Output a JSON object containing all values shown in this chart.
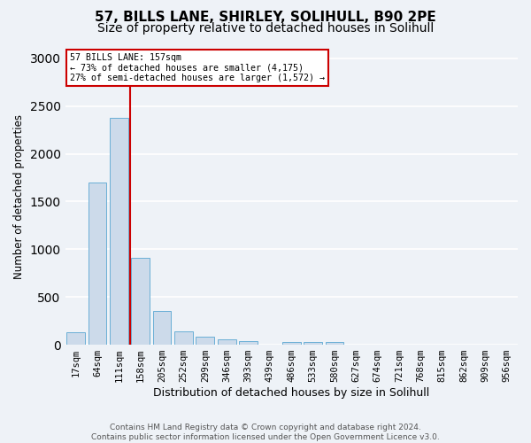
{
  "title_line1": "57, BILLS LANE, SHIRLEY, SOLIHULL, B90 2PE",
  "title_line2": "Size of property relative to detached houses in Solihull",
  "xlabel": "Distribution of detached houses by size in Solihull",
  "ylabel": "Number of detached properties",
  "footer_line1": "Contains HM Land Registry data © Crown copyright and database right 2024.",
  "footer_line2": "Contains public sector information licensed under the Open Government Licence v3.0.",
  "categories": [
    "17sqm",
    "64sqm",
    "111sqm",
    "158sqm",
    "205sqm",
    "252sqm",
    "299sqm",
    "346sqm",
    "393sqm",
    "439sqm",
    "486sqm",
    "533sqm",
    "580sqm",
    "627sqm",
    "674sqm",
    "721sqm",
    "768sqm",
    "815sqm",
    "862sqm",
    "909sqm",
    "956sqm"
  ],
  "values": [
    130,
    1700,
    2380,
    910,
    350,
    140,
    80,
    55,
    40,
    0,
    30,
    30,
    30,
    0,
    0,
    0,
    0,
    0,
    0,
    0,
    0
  ],
  "bar_color": "#ccdaea",
  "bar_edgecolor": "#6aafd6",
  "highlight_line_color": "#cc0000",
  "annotation_text": "57 BILLS LANE: 157sqm\n← 73% of detached houses are smaller (4,175)\n27% of semi-detached houses are larger (1,572) →",
  "ylim": [
    0,
    3100
  ],
  "background_color": "#eef2f7",
  "plot_bg_color": "#eef2f7",
  "grid_color": "#ffffff",
  "title_fontsize": 11,
  "subtitle_fontsize": 10,
  "axis_label_fontsize": 8.5,
  "tick_fontsize": 7.5,
  "footer_fontsize": 6.5
}
